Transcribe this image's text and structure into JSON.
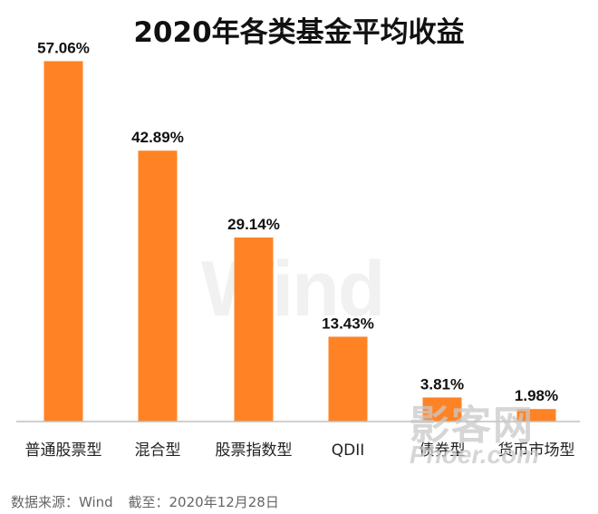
{
  "chart_data": {
    "type": "bar",
    "title": "2020年各类基金平均收益",
    "categories": [
      "普通股票型",
      "混合型",
      "股票指数型",
      "QDII",
      "债券型",
      "货币市场型"
    ],
    "values": [
      57.06,
      42.89,
      29.14,
      13.43,
      3.81,
      1.98
    ],
    "value_labels": [
      "57.06%",
      "42.89%",
      "29.14%",
      "13.43%",
      "3.81%",
      "1.98%"
    ],
    "ylim": [
      0,
      60
    ],
    "grid": false,
    "legend": "none",
    "bar_color": "#ff8324",
    "axis_color": "#bfbfbf"
  },
  "source": {
    "label": "数据来源：Wind",
    "date": "截至：2020年12月28日"
  },
  "watermarks": {
    "wind": "Wind",
    "site_cn": "影客网",
    "site_en": "Phoer.com"
  }
}
